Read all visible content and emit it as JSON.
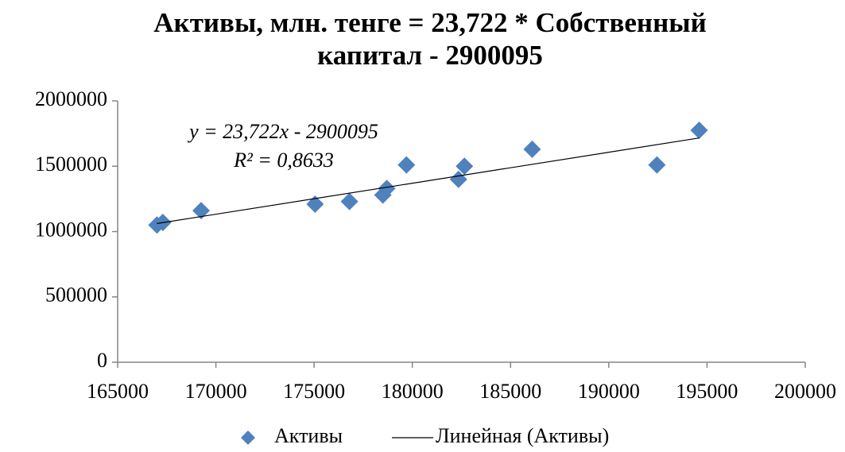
{
  "chart_data": {
    "type": "scatter",
    "title": [
      "Активы, млн. тенге = 23,722 * Собственный",
      "капитал - 2900095"
    ],
    "series": [
      {
        "name": "Активы",
        "color": "#4f81bd",
        "x": [
          167000,
          167300,
          169250,
          175050,
          176800,
          178500,
          178700,
          179700,
          182350,
          182650,
          186100,
          192450,
          194600
        ],
        "values": [
          1050000,
          1070000,
          1160000,
          1210000,
          1230000,
          1280000,
          1330000,
          1510000,
          1400000,
          1500000,
          1630000,
          1510000,
          1775000
        ]
      }
    ],
    "trendline": {
      "name": "Линейная (Активы)",
      "color": "#000000",
      "slope": 23.722,
      "intercept": -2900095,
      "equation": "y = 23,722x - 2900095",
      "r2": "R² = 0,8633"
    },
    "xlim": [
      165000,
      200000
    ],
    "xticks": [
      165000,
      170000,
      175000,
      180000,
      185000,
      190000,
      195000,
      200000
    ],
    "ylim": [
      0,
      2000000
    ],
    "yticks": [
      0,
      500000,
      1000000,
      1500000,
      2000000
    ],
    "grid": false,
    "legend": "bottom"
  }
}
